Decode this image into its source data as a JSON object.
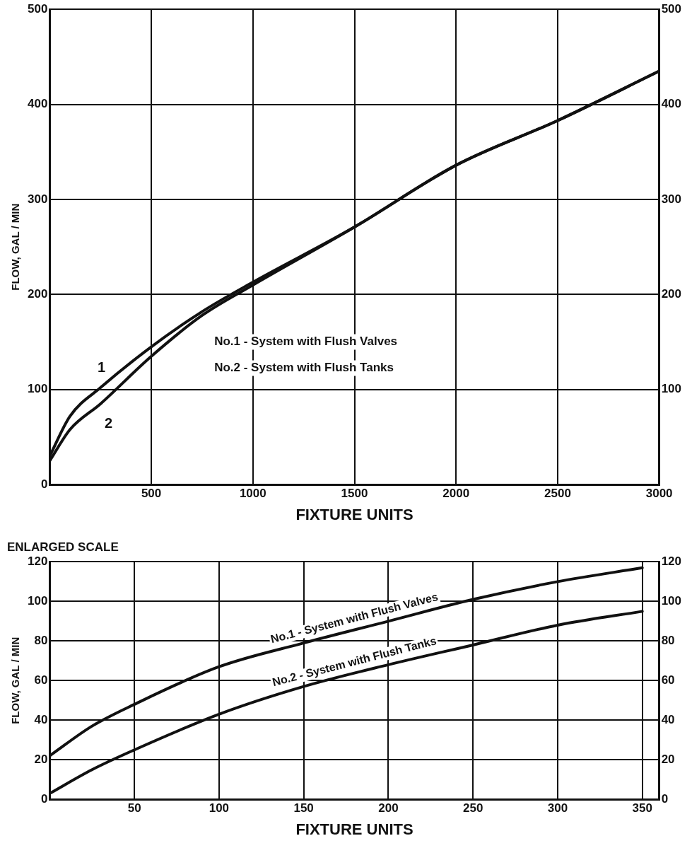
{
  "chart_data": [
    {
      "type": "line",
      "xlabel": "FIXTURE UNITS",
      "ylabel": "FLOW, GAL / MIN",
      "xlim": [
        0,
        3000
      ],
      "xticks": [
        500,
        1000,
        1500,
        2000,
        2500,
        3000
      ],
      "ylim": [
        0,
        500
      ],
      "yticks": [
        0,
        100,
        200,
        300,
        400,
        500
      ],
      "y2lim": [
        0,
        500
      ],
      "y2ticks": [
        100,
        200,
        300,
        400,
        500
      ],
      "grid": true,
      "legend": false,
      "marker": "none",
      "line_style": "solid",
      "series": [
        {
          "color": "#111111",
          "x": [
            0,
            100,
            250,
            500,
            750,
            1000,
            1500,
            2000,
            2500,
            3000
          ],
          "values": [
            30,
            72,
            102,
            145,
            182,
            213,
            271,
            336,
            383,
            435
          ]
        },
        {
          "color": "#111111",
          "x": [
            0,
            100,
            250,
            500,
            750,
            1000,
            1500,
            2000,
            2500,
            3000
          ],
          "values": [
            25,
            58,
            85,
            135,
            178,
            210,
            271,
            336,
            383,
            435
          ]
        }
      ],
      "annotations": [
        "1",
        "2",
        "No.1 - System with Flush Valves",
        "No.2 - System with Flush Tanks"
      ]
    },
    {
      "type": "line",
      "title": "ENLARGED SCALE",
      "xlabel": "FIXTURE UNITS",
      "ylabel": "FLOW, GAL / MIN",
      "xlim": [
        0,
        360
      ],
      "xticks": [
        50,
        100,
        150,
        200,
        250,
        300,
        350
      ],
      "ylim": [
        0,
        120
      ],
      "yticks": [
        0,
        20,
        40,
        60,
        80,
        100,
        120
      ],
      "y2lim": [
        0,
        120
      ],
      "y2ticks": [
        0,
        20,
        40,
        60,
        80,
        100,
        120
      ],
      "grid": true,
      "legend": false,
      "marker": "none",
      "line_style": "solid",
      "series": [
        {
          "color": "#111111",
          "x": [
            0,
            25,
            50,
            100,
            150,
            200,
            250,
            300,
            350
          ],
          "values": [
            22,
            37,
            48,
            67,
            79,
            90,
            101,
            110,
            117
          ]
        },
        {
          "color": "#111111",
          "x": [
            0,
            25,
            50,
            100,
            150,
            200,
            250,
            300,
            350
          ],
          "values": [
            3,
            15,
            25,
            43,
            57,
            68,
            78,
            88,
            95
          ]
        }
      ],
      "annotations": [
        "No.1 - System with Flush Valves",
        "No.2 - System with Flush Tanks"
      ]
    }
  ]
}
